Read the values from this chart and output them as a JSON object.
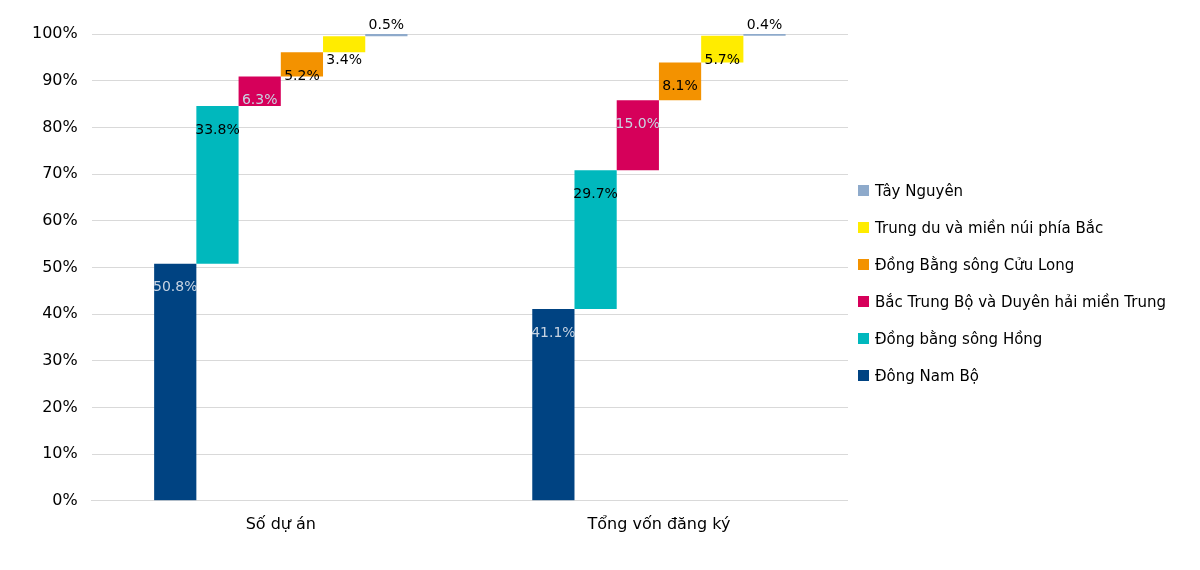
{
  "chart_data": {
    "type": "bar",
    "categories": [
      "Số dự án",
      "Tổng vốn đăng ký"
    ],
    "series": [
      {
        "name": "Đông Nam Bộ",
        "color": "#004382",
        "values": [
          50.8,
          41.1
        ],
        "base": [
          0,
          0
        ],
        "value_labels": [
          "50.8%",
          "41.1%"
        ]
      },
      {
        "name": "Đồng bằng sông Hồng",
        "color": "#00b8bd",
        "values": [
          33.8,
          29.7
        ],
        "base": [
          50.8,
          41.1
        ],
        "value_labels": [
          "33.8%",
          "29.7%"
        ]
      },
      {
        "name": "Bắc Trung Bộ và Duyên hải miền Trung",
        "color": "#d6005a",
        "values": [
          6.3,
          15.0
        ],
        "base": [
          84.6,
          70.8
        ],
        "value_labels": [
          "6.3%",
          "15.0%"
        ]
      },
      {
        "name": "Đồng Bằng sông Cửu Long",
        "color": "#f39200",
        "values": [
          5.2,
          8.1
        ],
        "base": [
          90.9,
          85.8
        ],
        "value_labels": [
          "5.2%",
          "8.1%"
        ]
      },
      {
        "name": "Trung du và miền núi phía Bắc",
        "color": "#ffec00",
        "values": [
          3.4,
          5.7
        ],
        "base": [
          96.1,
          93.9
        ],
        "value_labels": [
          "3.4%",
          "5.7%"
        ]
      },
      {
        "name": "Tây Nguyên",
        "color": "#8eaacb",
        "values": [
          0.5,
          0.4
        ],
        "base": [
          99.5,
          99.6
        ],
        "value_labels": [
          "0.5%",
          "0.4%"
        ]
      }
    ],
    "ylim": [
      0,
      100
    ],
    "yticks": [
      {
        "value": 0,
        "label": "0%"
      },
      {
        "value": 10,
        "label": "10%"
      },
      {
        "value": 20,
        "label": "20%"
      },
      {
        "value": 30,
        "label": "30%"
      },
      {
        "value": 40,
        "label": "40%"
      },
      {
        "value": 50,
        "label": "50%"
      },
      {
        "value": 60,
        "label": "60%"
      },
      {
        "value": 70,
        "label": "70%"
      },
      {
        "value": 80,
        "label": "80%"
      },
      {
        "value": 90,
        "label": "90%"
      },
      {
        "value": 100,
        "label": "100%"
      }
    ],
    "grid": "y",
    "legend": "right"
  }
}
